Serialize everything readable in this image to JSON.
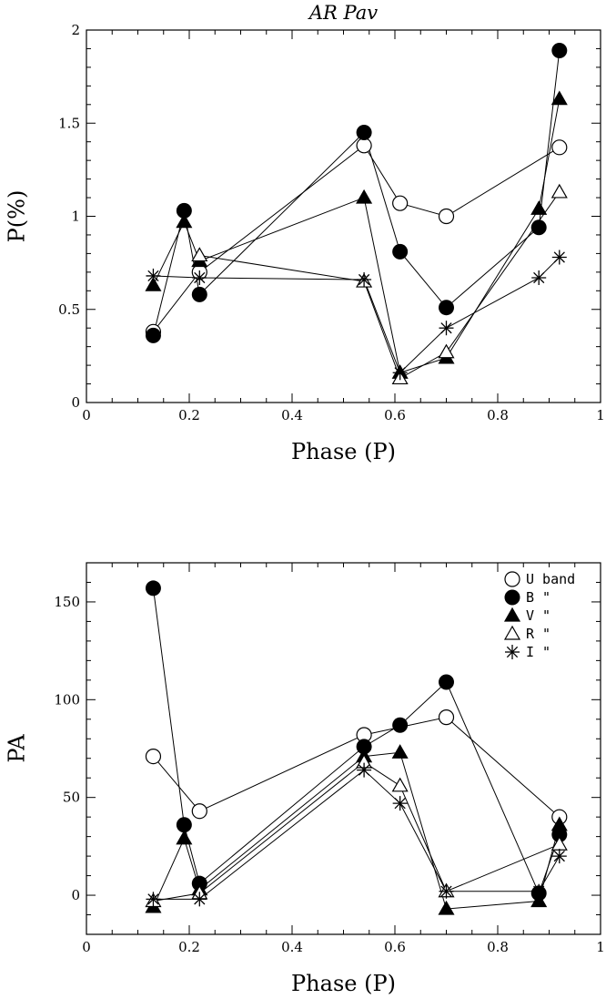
{
  "chart_data": [
    {
      "type": "line",
      "title": "AR Pav",
      "xlabel": "Phase (P)",
      "ylabel": "P(%)",
      "xlim": [
        0,
        1
      ],
      "ylim": [
        0,
        2
      ],
      "xticks": [
        "0",
        "0.2",
        "0.4",
        "0.6",
        "0.8",
        "1"
      ],
      "yticks": [
        "0",
        "0.5",
        "1",
        "1.5",
        "2"
      ],
      "series": [
        {
          "marker": "open-circle",
          "x": [
            0.13,
            0.22,
            0.54,
            0.61,
            0.7,
            0.92
          ],
          "y": [
            0.38,
            0.7,
            1.38,
            1.07,
            1.0,
            1.37
          ]
        },
        {
          "marker": "filled-circle",
          "x": [
            0.13,
            0.19,
            0.22,
            0.54,
            0.61,
            0.7,
            0.88,
            0.92
          ],
          "y": [
            0.36,
            1.03,
            0.58,
            1.45,
            0.81,
            0.51,
            0.94,
            1.89
          ]
        },
        {
          "marker": "filled-triangle",
          "x": [
            0.13,
            0.19,
            0.22,
            0.54,
            0.61,
            0.7,
            0.88,
            0.92
          ],
          "y": [
            0.63,
            0.97,
            0.76,
            1.1,
            0.16,
            0.24,
            1.04,
            1.63
          ]
        },
        {
          "marker": "open-triangle",
          "x": [
            0.22,
            0.54,
            0.61,
            0.7,
            0.92
          ],
          "y": [
            0.79,
            0.65,
            0.13,
            0.27,
            1.13
          ]
        },
        {
          "marker": "asterisk",
          "x": [
            0.13,
            0.22,
            0.54,
            0.61,
            0.7,
            0.88,
            0.92
          ],
          "y": [
            0.68,
            0.67,
            0.66,
            0.16,
            0.4,
            0.67,
            0.78
          ]
        }
      ]
    },
    {
      "type": "line",
      "title": "",
      "xlabel": "Phase (P)",
      "ylabel": "PA",
      "xlim": [
        0,
        1
      ],
      "ylim": [
        -20,
        170
      ],
      "xticks": [
        "0",
        "0.2",
        "0.4",
        "0.6",
        "0.8",
        "1"
      ],
      "yticks": [
        "0",
        "50",
        "100",
        "150"
      ],
      "legend": {
        "position": "top-right",
        "entries": [
          {
            "marker": "open-circle",
            "label": "U band"
          },
          {
            "marker": "filled-circle",
            "label": "B  \""
          },
          {
            "marker": "filled-triangle",
            "label": "V  \""
          },
          {
            "marker": "open-triangle",
            "label": "R  \""
          },
          {
            "marker": "asterisk",
            "label": "I  \""
          }
        ]
      },
      "series": [
        {
          "marker": "open-circle",
          "x": [
            0.13,
            0.22,
            0.54,
            0.7,
            0.92
          ],
          "y": [
            71,
            43,
            82,
            91,
            40
          ]
        },
        {
          "marker": "filled-circle",
          "x": [
            0.13,
            0.19,
            0.22,
            0.54,
            0.61,
            0.7,
            0.88,
            0.92
          ],
          "y": [
            157,
            36,
            6,
            76,
            87,
            109,
            1,
            31
          ]
        },
        {
          "marker": "filled-triangle",
          "x": [
            0.13,
            0.19,
            0.22,
            0.54,
            0.61,
            0.7,
            0.88,
            0.92
          ],
          "y": [
            -6,
            29,
            3,
            71,
            73,
            -7,
            -3,
            36
          ]
        },
        {
          "marker": "open-triangle",
          "x": [
            0.13,
            0.22,
            0.54,
            0.61,
            0.7,
            0.92
          ],
          "y": [
            -3,
            1,
            68,
            56,
            2,
            26
          ]
        },
        {
          "marker": "asterisk",
          "x": [
            0.13,
            0.22,
            0.54,
            0.61,
            0.7,
            0.88,
            0.92
          ],
          "y": [
            -2,
            -2,
            64,
            47,
            2,
            2,
            20
          ]
        }
      ]
    }
  ]
}
